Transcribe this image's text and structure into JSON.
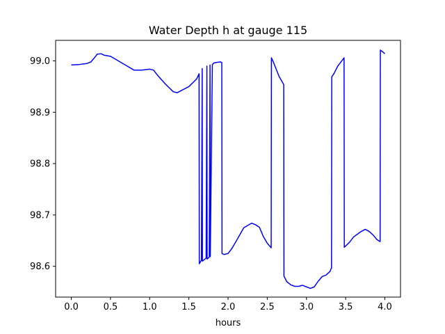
{
  "chart_data": {
    "type": "line",
    "title": "Water Depth h at gauge 115",
    "xlabel": "hours",
    "ylabel": "",
    "xlim": [
      -0.2,
      4.2
    ],
    "ylim": [
      98.54,
      99.04
    ],
    "x_ticks": [
      0.0,
      0.5,
      1.0,
      1.5,
      2.0,
      2.5,
      3.0,
      3.5,
      4.0
    ],
    "x_tick_labels": [
      "0.0",
      "0.5",
      "1.0",
      "1.5",
      "2.0",
      "2.5",
      "3.0",
      "3.5",
      "4.0"
    ],
    "y_ticks": [
      98.6,
      98.7,
      98.8,
      98.9,
      99.0
    ],
    "y_tick_labels": [
      "98.6",
      "98.7",
      "98.8",
      "98.9",
      "99.0"
    ],
    "grid": false,
    "series": [
      {
        "color": "#0000ff",
        "x": [
          0.0,
          0.1,
          0.2,
          0.25,
          0.3,
          0.33,
          0.38,
          0.42,
          0.5,
          0.6,
          0.7,
          0.8,
          0.9,
          1.0,
          1.05,
          1.1,
          1.2,
          1.3,
          1.35,
          1.4,
          1.5,
          1.6,
          1.63,
          1.633,
          1.66,
          1.67,
          1.673,
          1.72,
          1.73,
          1.733,
          1.76,
          1.77,
          1.773,
          1.8,
          1.82,
          1.85,
          1.9,
          1.92,
          1.923,
          1.95,
          2.0,
          2.05,
          2.1,
          2.2,
          2.3,
          2.35,
          2.4,
          2.45,
          2.5,
          2.55,
          2.553,
          2.58,
          2.65,
          2.71,
          2.713,
          2.75,
          2.8,
          2.85,
          2.9,
          2.95,
          3.0,
          3.05,
          3.1,
          3.15,
          3.2,
          3.25,
          3.3,
          3.32,
          3.323,
          3.35,
          3.4,
          3.45,
          3.48,
          3.483,
          3.55,
          3.6,
          3.7,
          3.75,
          3.8,
          3.85,
          3.9,
          3.94,
          3.943,
          3.97,
          4.0
        ],
        "y": [
          98.992,
          98.993,
          98.995,
          98.998,
          99.007,
          99.013,
          99.014,
          99.011,
          99.009,
          99.0,
          98.991,
          98.982,
          98.982,
          98.984,
          98.982,
          98.972,
          98.955,
          98.94,
          98.938,
          98.942,
          98.95,
          98.965,
          98.975,
          98.605,
          98.612,
          98.985,
          98.61,
          98.616,
          98.99,
          98.614,
          98.618,
          98.992,
          98.619,
          98.993,
          98.996,
          98.997,
          98.998,
          98.997,
          98.625,
          98.623,
          98.625,
          98.635,
          98.648,
          98.675,
          98.684,
          98.681,
          98.676,
          98.658,
          98.645,
          98.636,
          99.006,
          98.997,
          98.97,
          98.954,
          98.581,
          98.57,
          98.564,
          98.561,
          98.561,
          98.563,
          98.56,
          98.557,
          98.56,
          98.571,
          98.58,
          98.583,
          98.59,
          98.597,
          98.969,
          98.975,
          98.99,
          99.0,
          99.006,
          98.637,
          98.647,
          98.657,
          98.668,
          98.672,
          98.668,
          98.661,
          98.652,
          98.648,
          99.021,
          99.018,
          99.014
        ]
      }
    ]
  }
}
